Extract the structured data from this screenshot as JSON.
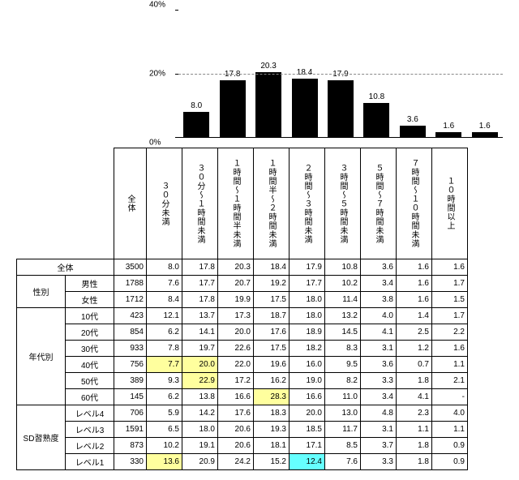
{
  "chart": {
    "type": "bar",
    "ylim": [
      0,
      40
    ],
    "yticks": [
      0,
      20,
      40
    ],
    "ytick_labels": [
      "0%",
      "20%",
      "40%"
    ],
    "bar_color": "#000000",
    "grid_color": "#888888",
    "grid_at": 20,
    "categories": [
      "３０分未満",
      "３０分〜１時間未満",
      "１時間〜１時間半未満",
      "１時間半〜２時間未満",
      "２時間〜３時間未満",
      "３時間〜５時間未満",
      "５時間〜７時間未満",
      "７時間〜１０時間未満",
      "１０時間以上"
    ],
    "values": [
      8.0,
      17.8,
      20.3,
      18.4,
      17.9,
      10.8,
      3.6,
      1.6,
      1.6
    ]
  },
  "table": {
    "col0_width": 60,
    "col1_width": 60,
    "col2_width": 40,
    "data_col_width": 44,
    "total_label": "全体",
    "header_n": "全体",
    "columns": [
      "３０分未満",
      "３０分〜１時間未満",
      "１時間〜１時間半未満",
      "１時間半〜２時間未満",
      "２時間〜３時間未満",
      "３時間〜５時間未満",
      "５時間〜７時間未満",
      "７時間〜１０時間未満",
      "１０時間以上"
    ],
    "total_row": {
      "label": "全体",
      "n": 3500,
      "values": [
        8.0,
        17.8,
        20.3,
        18.4,
        17.9,
        10.8,
        3.6,
        1.6,
        1.6
      ]
    },
    "groups": [
      {
        "name": "性別",
        "rows": [
          {
            "label": "男性",
            "n": 1788,
            "values": [
              7.6,
              17.7,
              20.7,
              19.2,
              17.7,
              10.2,
              3.4,
              1.6,
              1.7
            ]
          },
          {
            "label": "女性",
            "n": 1712,
            "values": [
              8.4,
              17.8,
              19.9,
              17.5,
              18.0,
              11.4,
              3.8,
              1.6,
              1.5
            ]
          }
        ]
      },
      {
        "name": "年代別",
        "rows": [
          {
            "label": "10代",
            "n": 423,
            "values": [
              12.1,
              13.7,
              17.3,
              18.7,
              18.0,
              13.2,
              4.0,
              1.4,
              1.7
            ]
          },
          {
            "label": "20代",
            "n": 854,
            "values": [
              6.2,
              14.1,
              20.0,
              17.6,
              18.9,
              14.5,
              4.1,
              2.5,
              2.2
            ]
          },
          {
            "label": "30代",
            "n": 933,
            "values": [
              7.8,
              19.7,
              22.6,
              17.5,
              18.2,
              8.3,
              3.1,
              1.2,
              1.6
            ]
          },
          {
            "label": "40代",
            "n": 756,
            "values": [
              7.7,
              20.0,
              22.0,
              19.6,
              16.0,
              9.5,
              3.6,
              0.7,
              1.1
            ]
          },
          {
            "label": "50代",
            "n": 389,
            "values": [
              9.3,
              22.9,
              17.2,
              16.2,
              19.0,
              8.2,
              3.3,
              1.8,
              2.1
            ]
          },
          {
            "label": "60代",
            "n": 145,
            "values": [
              6.2,
              13.8,
              16.6,
              28.3,
              16.6,
              11.0,
              3.4,
              4.1,
              "-"
            ]
          }
        ]
      },
      {
        "name": "SD習熟度",
        "rows": [
          {
            "label": "レベル4",
            "n": 706,
            "values": [
              5.9,
              14.2,
              17.6,
              18.3,
              20.0,
              13.0,
              4.8,
              2.3,
              4.0
            ]
          },
          {
            "label": "レベル3",
            "n": 1591,
            "values": [
              6.5,
              18.0,
              20.6,
              19.3,
              18.5,
              11.7,
              3.1,
              1.1,
              1.1
            ]
          },
          {
            "label": "レベル2",
            "n": 873,
            "values": [
              10.2,
              19.1,
              20.6,
              18.1,
              17.1,
              8.5,
              3.7,
              1.8,
              0.9
            ]
          },
          {
            "label": "レベル1",
            "n": 330,
            "values": [
              13.6,
              20.9,
              24.2,
              15.2,
              12.4,
              7.6,
              3.3,
              1.8,
              0.9
            ]
          }
        ]
      }
    ],
    "highlights": {
      "yellow": "#ffff9e",
      "cyan": "#66ffff",
      "cells": [
        {
          "g": 1,
          "r": 3,
          "c": 0,
          "color": "yellow"
        },
        {
          "g": 1,
          "r": 3,
          "c": 1,
          "color": "yellow"
        },
        {
          "g": 1,
          "r": 4,
          "c": 1,
          "color": "yellow"
        },
        {
          "g": 1,
          "r": 5,
          "c": 3,
          "color": "yellow"
        },
        {
          "g": 2,
          "r": 3,
          "c": 0,
          "color": "yellow"
        },
        {
          "g": 2,
          "r": 3,
          "c": 4,
          "color": "cyan"
        }
      ]
    }
  }
}
